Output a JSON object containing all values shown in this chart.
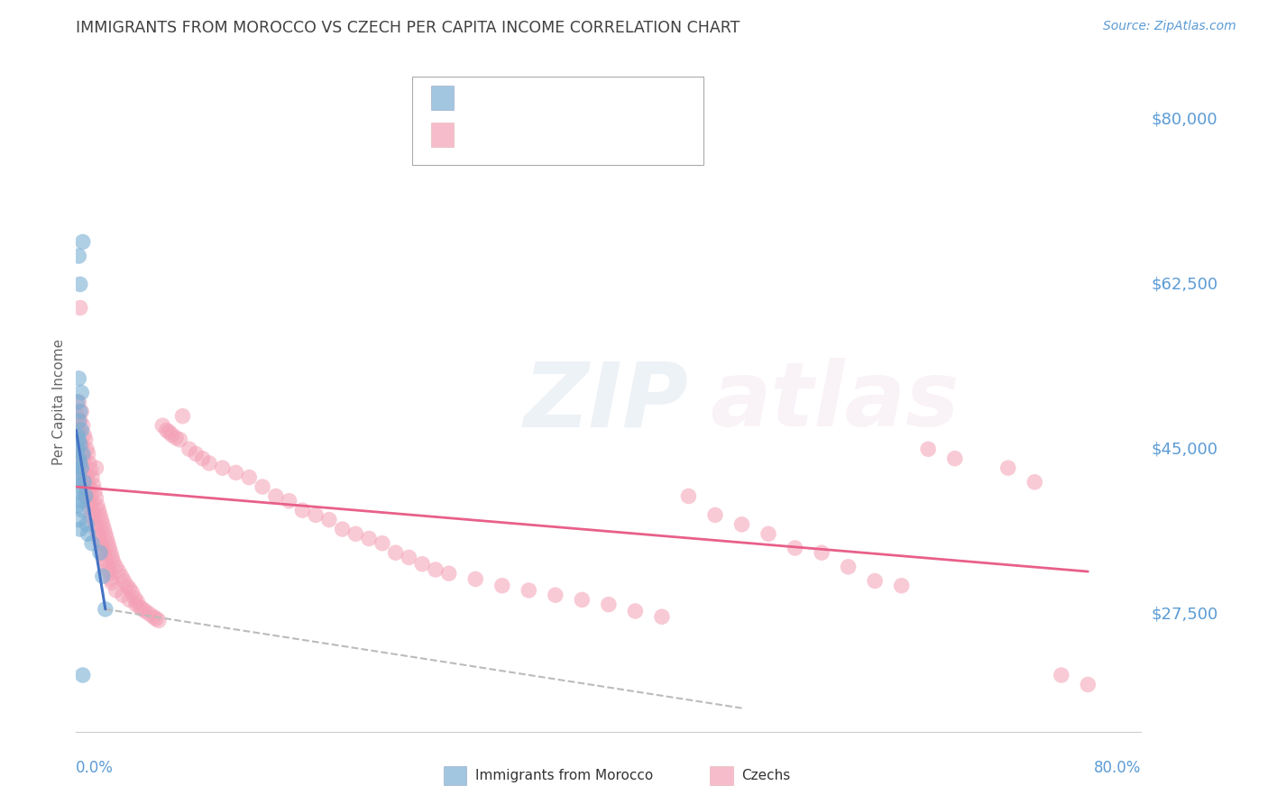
{
  "title": "IMMIGRANTS FROM MOROCCO VS CZECH PER CAPITA INCOME CORRELATION CHART",
  "source": "Source: ZipAtlas.com",
  "ylabel": "Per Capita Income",
  "yticks": [
    27500,
    45000,
    62500,
    80000
  ],
  "ytick_labels": [
    "$27,500",
    "$45,000",
    "$62,500",
    "$80,000"
  ],
  "ylim": [
    15000,
    85000
  ],
  "xlim": [
    0.0,
    0.8
  ],
  "legend_label1": "Immigrants from Morocco",
  "legend_label2": "Czechs",
  "blue_color": "#7BAFD4",
  "pink_color": "#F4A0B5",
  "blue_line_color": "#4472C4",
  "pink_line_color": "#E8608A",
  "blue_scatter": [
    [
      0.002,
      65500
    ],
    [
      0.005,
      67000
    ],
    [
      0.003,
      62500
    ],
    [
      0.002,
      52500
    ],
    [
      0.004,
      51000
    ],
    [
      0.001,
      50000
    ],
    [
      0.003,
      49000
    ],
    [
      0.002,
      48000
    ],
    [
      0.004,
      47000
    ],
    [
      0.001,
      46500
    ],
    [
      0.002,
      46000
    ],
    [
      0.003,
      45500
    ],
    [
      0.001,
      45000
    ],
    [
      0.005,
      44500
    ],
    [
      0.002,
      44000
    ],
    [
      0.003,
      43500
    ],
    [
      0.004,
      43000
    ],
    [
      0.001,
      42500
    ],
    [
      0.002,
      42000
    ],
    [
      0.006,
      41500
    ],
    [
      0.003,
      41000
    ],
    [
      0.002,
      40500
    ],
    [
      0.007,
      40000
    ],
    [
      0.004,
      39500
    ],
    [
      0.001,
      39000
    ],
    [
      0.005,
      38500
    ],
    [
      0.002,
      37500
    ],
    [
      0.008,
      37000
    ],
    [
      0.003,
      36500
    ],
    [
      0.009,
      36000
    ],
    [
      0.012,
      35000
    ],
    [
      0.018,
      34000
    ],
    [
      0.02,
      31500
    ],
    [
      0.022,
      28000
    ],
    [
      0.005,
      21000
    ]
  ],
  "pink_scatter": [
    [
      0.003,
      60000
    ],
    [
      0.002,
      50000
    ],
    [
      0.004,
      49000
    ],
    [
      0.001,
      48500
    ],
    [
      0.003,
      48000
    ],
    [
      0.005,
      47500
    ],
    [
      0.002,
      47000
    ],
    [
      0.006,
      46500
    ],
    [
      0.007,
      46000
    ],
    [
      0.004,
      45500
    ],
    [
      0.008,
      45000
    ],
    [
      0.003,
      44800
    ],
    [
      0.009,
      44500
    ],
    [
      0.005,
      44200
    ],
    [
      0.006,
      44000
    ],
    [
      0.01,
      43500
    ],
    [
      0.004,
      43200
    ],
    [
      0.015,
      43000
    ],
    [
      0.011,
      42800
    ],
    [
      0.005,
      42500
    ],
    [
      0.008,
      42200
    ],
    [
      0.012,
      42000
    ],
    [
      0.006,
      41800
    ],
    [
      0.009,
      41500
    ],
    [
      0.013,
      41200
    ],
    [
      0.007,
      41000
    ],
    [
      0.01,
      40800
    ],
    [
      0.014,
      40500
    ],
    [
      0.008,
      40200
    ],
    [
      0.011,
      40000
    ],
    [
      0.015,
      39800
    ],
    [
      0.009,
      39500
    ],
    [
      0.012,
      39200
    ],
    [
      0.016,
      39000
    ],
    [
      0.01,
      38800
    ],
    [
      0.017,
      38500
    ],
    [
      0.013,
      38200
    ],
    [
      0.018,
      38000
    ],
    [
      0.011,
      37800
    ],
    [
      0.019,
      37500
    ],
    [
      0.014,
      37200
    ],
    [
      0.02,
      37000
    ],
    [
      0.015,
      36800
    ],
    [
      0.021,
      36500
    ],
    [
      0.016,
      36200
    ],
    [
      0.022,
      36000
    ],
    [
      0.017,
      35800
    ],
    [
      0.023,
      35500
    ],
    [
      0.018,
      35200
    ],
    [
      0.024,
      35000
    ],
    [
      0.019,
      34800
    ],
    [
      0.025,
      34500
    ],
    [
      0.02,
      34200
    ],
    [
      0.026,
      34000
    ],
    [
      0.021,
      33800
    ],
    [
      0.027,
      33500
    ],
    [
      0.022,
      33200
    ],
    [
      0.028,
      33000
    ],
    [
      0.023,
      32800
    ],
    [
      0.03,
      32500
    ],
    [
      0.024,
      32200
    ],
    [
      0.032,
      32000
    ],
    [
      0.025,
      31800
    ],
    [
      0.034,
      31500
    ],
    [
      0.026,
      31200
    ],
    [
      0.036,
      31000
    ],
    [
      0.027,
      30800
    ],
    [
      0.038,
      30500
    ],
    [
      0.04,
      30200
    ],
    [
      0.03,
      30000
    ],
    [
      0.042,
      29800
    ],
    [
      0.035,
      29500
    ],
    [
      0.044,
      29200
    ],
    [
      0.04,
      29000
    ],
    [
      0.046,
      28800
    ],
    [
      0.045,
      28500
    ],
    [
      0.048,
      28200
    ],
    [
      0.05,
      28000
    ],
    [
      0.052,
      27800
    ],
    [
      0.055,
      27500
    ],
    [
      0.058,
      27200
    ],
    [
      0.06,
      27000
    ],
    [
      0.062,
      26800
    ],
    [
      0.065,
      47500
    ],
    [
      0.068,
      47000
    ],
    [
      0.07,
      46800
    ],
    [
      0.072,
      46500
    ],
    [
      0.075,
      46200
    ],
    [
      0.078,
      46000
    ],
    [
      0.08,
      48500
    ],
    [
      0.085,
      45000
    ],
    [
      0.09,
      44500
    ],
    [
      0.095,
      44000
    ],
    [
      0.1,
      43500
    ],
    [
      0.11,
      43000
    ],
    [
      0.12,
      42500
    ],
    [
      0.13,
      42000
    ],
    [
      0.14,
      41000
    ],
    [
      0.15,
      40000
    ],
    [
      0.16,
      39500
    ],
    [
      0.17,
      38500
    ],
    [
      0.18,
      38000
    ],
    [
      0.19,
      37500
    ],
    [
      0.2,
      36500
    ],
    [
      0.21,
      36000
    ],
    [
      0.22,
      35500
    ],
    [
      0.23,
      35000
    ],
    [
      0.24,
      34000
    ],
    [
      0.25,
      33500
    ],
    [
      0.26,
      32800
    ],
    [
      0.27,
      32200
    ],
    [
      0.28,
      31800
    ],
    [
      0.3,
      31200
    ],
    [
      0.32,
      30500
    ],
    [
      0.34,
      30000
    ],
    [
      0.36,
      29500
    ],
    [
      0.38,
      29000
    ],
    [
      0.4,
      28500
    ],
    [
      0.42,
      27800
    ],
    [
      0.44,
      27200
    ],
    [
      0.46,
      40000
    ],
    [
      0.48,
      38000
    ],
    [
      0.5,
      37000
    ],
    [
      0.52,
      36000
    ],
    [
      0.54,
      34500
    ],
    [
      0.56,
      34000
    ],
    [
      0.58,
      32500
    ],
    [
      0.6,
      31000
    ],
    [
      0.62,
      30500
    ],
    [
      0.64,
      45000
    ],
    [
      0.66,
      44000
    ],
    [
      0.7,
      43000
    ],
    [
      0.72,
      41500
    ],
    [
      0.74,
      21000
    ],
    [
      0.76,
      20000
    ]
  ],
  "blue_line_x": [
    0.0,
    0.022
  ],
  "blue_line_y": [
    47000,
    28000
  ],
  "pink_line_x": [
    0.0,
    0.76
  ],
  "pink_line_y": [
    41000,
    32000
  ],
  "gray_line_x": [
    0.022,
    0.5
  ],
  "gray_line_y": [
    28000,
    17500
  ],
  "background_color": "#FFFFFF",
  "grid_color": "#CCCCCC",
  "axis_label_color": "#5B9BD5",
  "title_color": "#404040"
}
